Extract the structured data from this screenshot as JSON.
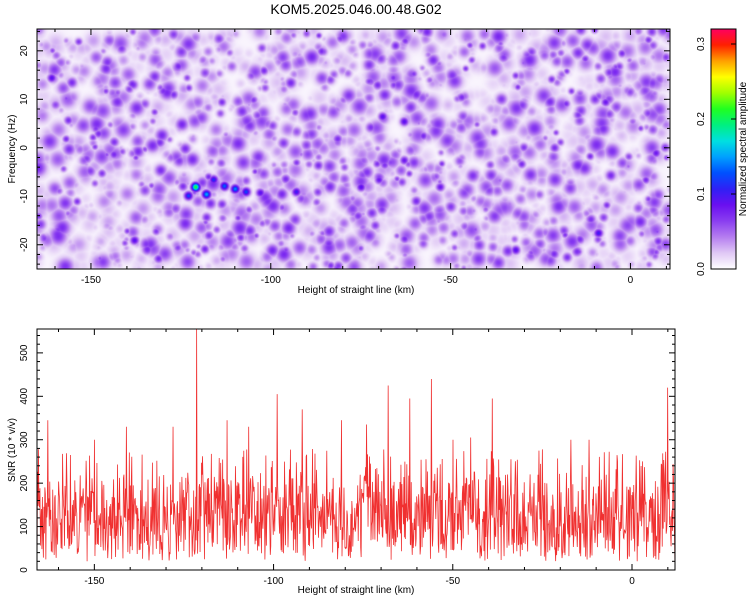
{
  "figure": {
    "title": "KOM5.2025.046.00.48.G02"
  },
  "chart_data": [
    {
      "type": "heatmap",
      "xlabel": "Height of straight line (km)",
      "ylabel": "Frequency (Hz)",
      "xlim": [
        -165,
        11
      ],
      "ylim": [
        -25,
        24.5
      ],
      "xticks": [
        -150,
        -100,
        -50,
        0
      ],
      "yticks": [
        -20,
        -10,
        0,
        10,
        20
      ],
      "colorbar": {
        "label": "Normalized spectral amplitude",
        "min": 0.0,
        "max": 0.32,
        "ticks": [
          0.0,
          0.1,
          0.2,
          0.3
        ],
        "colors": [
          "#ffffff",
          "#e0c8f5",
          "#b57df0",
          "#8a3ef0",
          "#6a10f0",
          "#3020f5",
          "#0050ff",
          "#00a0ff",
          "#00e0e0",
          "#00f080",
          "#20ff20",
          "#a0ff00",
          "#ffff00",
          "#ffa000",
          "#ff2000",
          "#ff0060"
        ]
      },
      "background_level": 0.025,
      "hotspots": [
        {
          "x": -121,
          "y": -8.0,
          "value": 0.21
        },
        {
          "x": -118,
          "y": -9.5,
          "value": 0.15
        },
        {
          "x": -113,
          "y": -7.8,
          "value": 0.13
        },
        {
          "x": -110,
          "y": -8.4,
          "value": 0.14
        },
        {
          "x": -107,
          "y": -9.0,
          "value": 0.12
        },
        {
          "x": -123,
          "y": -9.8,
          "value": 0.12
        },
        {
          "x": -116,
          "y": -6.5,
          "value": 0.11
        },
        {
          "x": -103,
          "y": -9.2,
          "value": 0.09
        },
        {
          "x": -93,
          "y": -9.0,
          "value": 0.1
        },
        {
          "x": -75,
          "y": -8.0,
          "value": 0.09
        },
        {
          "x": -70,
          "y": -6.5,
          "value": 0.08
        },
        {
          "x": -161,
          "y": 14.5,
          "value": 0.09
        },
        {
          "x": -138,
          "y": -19.0,
          "value": 0.09
        },
        {
          "x": -69,
          "y": 6.5,
          "value": 0.09
        },
        {
          "x": -63,
          "y": 5.5,
          "value": 0.09
        },
        {
          "x": -63,
          "y": -2.5,
          "value": 0.08
        },
        {
          "x": -53,
          "y": -8.0,
          "value": 0.08
        },
        {
          "x": -32,
          "y": -21.0,
          "value": 0.09
        },
        {
          "x": -9,
          "y": -17.5,
          "value": 0.1
        },
        {
          "x": -7,
          "y": 9.5,
          "value": 0.08
        },
        {
          "x": 7,
          "y": -1.0,
          "value": 0.08
        },
        {
          "x": -102,
          "y": 16.0,
          "value": 0.07
        },
        {
          "x": -47,
          "y": 10.5,
          "value": 0.07
        },
        {
          "x": -148,
          "y": 3.0,
          "value": 0.07
        },
        {
          "x": -86,
          "y": 20.0,
          "value": 0.07
        }
      ]
    },
    {
      "type": "line",
      "xlabel": "Height of straight line (km)",
      "ylabel": "SNR (10 * v/v)",
      "xlim": [
        -166,
        12
      ],
      "ylim": [
        0,
        555
      ],
      "xticks": [
        -150,
        -100,
        -50,
        0
      ],
      "yticks": [
        0,
        100,
        200,
        300,
        400,
        500
      ],
      "color": "#f03030",
      "baseline_mean": 125,
      "peaks": [
        {
          "x": -163,
          "y": 345
        },
        {
          "x": -150,
          "y": 300
        },
        {
          "x": -141,
          "y": 330
        },
        {
          "x": -128,
          "y": 330
        },
        {
          "x": -121.5,
          "y": 555
        },
        {
          "x": -113,
          "y": 345
        },
        {
          "x": -107,
          "y": 330
        },
        {
          "x": -99,
          "y": 405
        },
        {
          "x": -92,
          "y": 370
        },
        {
          "x": -81,
          "y": 345
        },
        {
          "x": -74,
          "y": 335
        },
        {
          "x": -68,
          "y": 425
        },
        {
          "x": -62,
          "y": 395
        },
        {
          "x": -56,
          "y": 440
        },
        {
          "x": -50,
          "y": 300
        },
        {
          "x": -45,
          "y": 305
        },
        {
          "x": -39,
          "y": 395
        },
        {
          "x": -26,
          "y": 275
        },
        {
          "x": -17,
          "y": 300
        },
        {
          "x": -12,
          "y": 300
        },
        {
          "x": -4,
          "y": 250
        },
        {
          "x": 3,
          "y": 250
        },
        {
          "x": 10,
          "y": 420
        }
      ],
      "dips": [
        {
          "x": -166,
          "y": 0
        },
        {
          "x": 12,
          "y": 0
        }
      ]
    }
  ]
}
